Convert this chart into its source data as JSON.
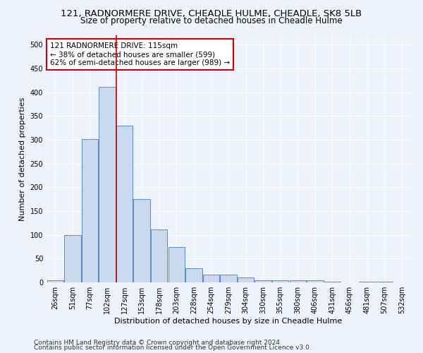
{
  "title1": "121, RADNORMERE DRIVE, CHEADLE HULME, CHEADLE, SK8 5LB",
  "title2": "Size of property relative to detached houses in Cheadle Hulme",
  "xlabel": "Distribution of detached houses by size in Cheadle Hulme",
  "ylabel": "Number of detached properties",
  "bar_labels": [
    "26sqm",
    "51sqm",
    "77sqm",
    "102sqm",
    "127sqm",
    "153sqm",
    "178sqm",
    "203sqm",
    "228sqm",
    "254sqm",
    "279sqm",
    "304sqm",
    "330sqm",
    "355sqm",
    "380sqm",
    "406sqm",
    "431sqm",
    "456sqm",
    "481sqm",
    "507sqm",
    "532sqm"
  ],
  "bar_values": [
    4,
    100,
    302,
    411,
    330,
    176,
    111,
    75,
    30,
    17,
    17,
    10,
    4,
    4,
    5,
    5,
    1,
    0,
    2,
    1,
    0
  ],
  "bar_color": "#c9d9ef",
  "bar_edge_color": "#5b8ac7",
  "annotation_text": "121 RADNORMERE DRIVE: 115sqm\n← 38% of detached houses are smaller (599)\n62% of semi-detached houses are larger (989) →",
  "annotation_box_color": "#ffffff",
  "annotation_box_edge_color": "#cc0000",
  "ylim": [
    0,
    520
  ],
  "yticks": [
    0,
    50,
    100,
    150,
    200,
    250,
    300,
    350,
    400,
    450,
    500
  ],
  "footer1": "Contains HM Land Registry data © Crown copyright and database right 2024.",
  "footer2": "Contains public sector information licensed under the Open Government Licence v3.0.",
  "background_color": "#eef2fb",
  "grid_color": "#ffffff",
  "title1_fontsize": 9.5,
  "title2_fontsize": 8.5,
  "axis_label_fontsize": 8,
  "tick_fontsize": 7,
  "annotation_fontsize": 7.5,
  "footer_fontsize": 6.5,
  "red_line_x": 3.52
}
